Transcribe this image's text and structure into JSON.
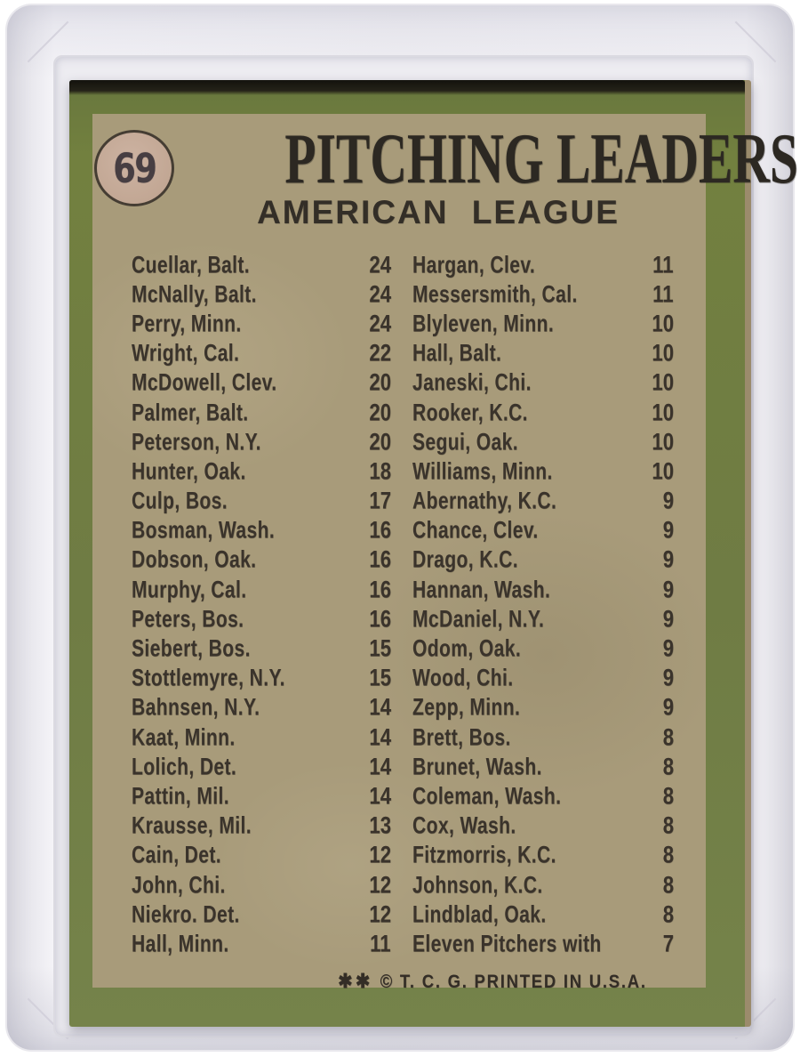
{
  "card": {
    "number": "69",
    "title": "PITCHING LEADERS",
    "subtitle": "AMERICAN LEAGUE",
    "footer_stars": "✱✱",
    "footer_text": "© T. C. G. PRINTED IN U.S.A.",
    "colors": {
      "border_green": "#6f7c44",
      "border_green_dark": "#68773d",
      "panel_tan": "#a89b7a",
      "ink": "#332e27",
      "circle_fill": "#c2a794"
    },
    "columns": {
      "left": [
        {
          "name": "Cuellar, Balt.",
          "wins": "24"
        },
        {
          "name": "McNally, Balt.",
          "wins": "24"
        },
        {
          "name": "Perry, Minn.",
          "wins": "24"
        },
        {
          "name": "Wright, Cal.",
          "wins": "22"
        },
        {
          "name": "McDowell, Clev.",
          "wins": "20"
        },
        {
          "name": "Palmer, Balt.",
          "wins": "20"
        },
        {
          "name": "Peterson, N.Y.",
          "wins": "20"
        },
        {
          "name": "Hunter, Oak.",
          "wins": "18"
        },
        {
          "name": "Culp, Bos.",
          "wins": "17"
        },
        {
          "name": "Bosman, Wash.",
          "wins": "16"
        },
        {
          "name": "Dobson, Oak.",
          "wins": "16"
        },
        {
          "name": "Murphy, Cal.",
          "wins": "16"
        },
        {
          "name": "Peters, Bos.",
          "wins": "16"
        },
        {
          "name": "Siebert, Bos.",
          "wins": "15"
        },
        {
          "name": "Stottlemyre, N.Y.",
          "wins": "15"
        },
        {
          "name": "Bahnsen, N.Y.",
          "wins": "14"
        },
        {
          "name": "Kaat, Minn.",
          "wins": "14"
        },
        {
          "name": "Lolich, Det.",
          "wins": "14"
        },
        {
          "name": "Pattin, Mil.",
          "wins": "14"
        },
        {
          "name": "Krausse, Mil.",
          "wins": "13"
        },
        {
          "name": "Cain, Det.",
          "wins": "12"
        },
        {
          "name": "John, Chi.",
          "wins": "12"
        },
        {
          "name": "Niekro. Det.",
          "wins": "12"
        },
        {
          "name": "Hall, Minn.",
          "wins": "11"
        }
      ],
      "right": [
        {
          "name": "Hargan, Clev.",
          "wins": "11"
        },
        {
          "name": "Messersmith, Cal.",
          "wins": "11"
        },
        {
          "name": "Blyleven, Minn.",
          "wins": "10"
        },
        {
          "name": "Hall, Balt.",
          "wins": "10"
        },
        {
          "name": "Janeski, Chi.",
          "wins": "10"
        },
        {
          "name": "Rooker, K.C.",
          "wins": "10"
        },
        {
          "name": "Segui, Oak.",
          "wins": "10"
        },
        {
          "name": "Williams, Minn.",
          "wins": "10"
        },
        {
          "name": "Abernathy, K.C.",
          "wins": "9"
        },
        {
          "name": "Chance, Clev.",
          "wins": "9"
        },
        {
          "name": "Drago, K.C.",
          "wins": "9"
        },
        {
          "name": "Hannan, Wash.",
          "wins": "9"
        },
        {
          "name": "McDaniel, N.Y.",
          "wins": "9"
        },
        {
          "name": "Odom, Oak.",
          "wins": "9"
        },
        {
          "name": "Wood, Chi.",
          "wins": "9"
        },
        {
          "name": "Zepp, Minn.",
          "wins": "9"
        },
        {
          "name": "Brett, Bos.",
          "wins": "8"
        },
        {
          "name": "Brunet, Wash.",
          "wins": "8"
        },
        {
          "name": "Coleman, Wash.",
          "wins": "8"
        },
        {
          "name": "Cox, Wash.",
          "wins": "8"
        },
        {
          "name": "Fitzmorris, K.C.",
          "wins": "8"
        },
        {
          "name": "Johnson, K.C.",
          "wins": "8"
        },
        {
          "name": "Lindblad, Oak.",
          "wins": "8"
        },
        {
          "name": "Eleven Pitchers with",
          "wins": "7"
        }
      ]
    }
  }
}
